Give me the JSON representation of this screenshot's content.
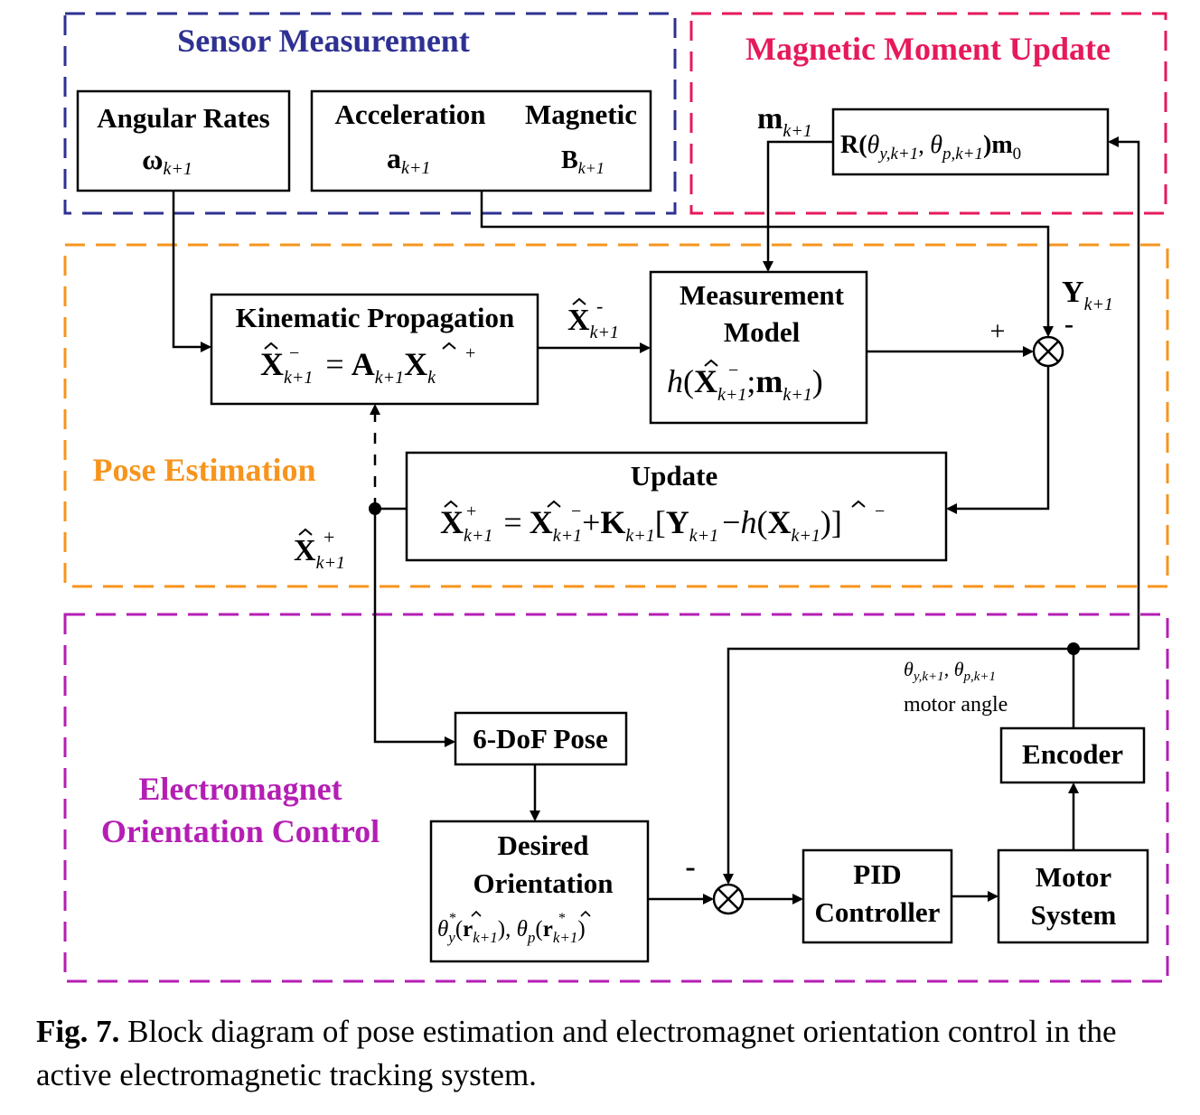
{
  "colors": {
    "sensor": "#2E3192",
    "magnetic": "#E6195A",
    "pose": "#F7941D",
    "control": "#B41EB4",
    "line": "#000000"
  },
  "regions": {
    "sensor": "Sensor Measurement",
    "magnetic": "Magnetic Moment Update",
    "pose": "Pose Estimation",
    "control_line1": "Electromagnet",
    "control_line2": "Orientation Control"
  },
  "blocks": {
    "angular_rates": {
      "label": "Angular Rates",
      "symbol": "ω",
      "sub": "k+1"
    },
    "accel_mag": {
      "label_accel": "Acceleration",
      "label_mag": "Magnetic",
      "accel_symbol": "a",
      "mag_symbol": "B",
      "sub": "k+1"
    },
    "rotation": {
      "text_R": "R(",
      "theta": "θ",
      "sub_y": "y,k+1",
      "sep": ", ",
      "sub_p": "p,k+1",
      "text_close": ")",
      "text_m": "m",
      "sub_0": "0"
    },
    "kinematic": {
      "label": "Kinematic Propagation",
      "eq_X": "X",
      "eq_sub": "k+1",
      "eq_eq": "=",
      "eq_A": "A",
      "eq_Xk": "X",
      "eq_k": "k"
    },
    "measurement": {
      "line1": "Measurement",
      "line2": "Model",
      "h": "h",
      "X": "X",
      "sub": "k+1",
      "semi": ";",
      "m": "m",
      "msub": "k+1"
    },
    "update": {
      "label": "Update",
      "X": "X",
      "sub": "k+1",
      "eq": "=",
      "plus": "+",
      "K": "K",
      "Y": "Y",
      "minus": "−",
      "h": "h"
    },
    "pose6dof": {
      "label": "6-DoF Pose"
    },
    "desired": {
      "line1": "Desired",
      "line2": "Orientation",
      "theta": "θ",
      "sub_y": "y",
      "sub_p": "p",
      "r": "r",
      "rsub": "k+1",
      "sep": ", "
    },
    "pid": {
      "line1": "PID",
      "line2": "Controller"
    },
    "motor": {
      "line1": "Motor",
      "line2": "System"
    },
    "encoder": {
      "label": "Encoder"
    }
  },
  "signals": {
    "m_k1": {
      "m": "m",
      "sub": "k+1"
    },
    "Y_k1": {
      "Y": "Y",
      "sub": "k+1"
    },
    "X_minus": {
      "X": "X",
      "sub": "k+1"
    },
    "X_plus": {
      "X": "X",
      "sub": "k+1"
    },
    "plus_sign": "+",
    "minus_sign": "-",
    "minus_sign_control": "-",
    "motor_angle_theta": "θ",
    "motor_angle_sub_y": "y,k+1",
    "motor_angle_sub_p": "p,k+1",
    "motor_angle_sep": ", ",
    "motor_angle_label": "motor angle"
  },
  "caption": {
    "fig": "Fig. 7.",
    "text": " Block diagram of pose estimation and electromagnet orientation control in the active electromagnetic tracking system."
  }
}
